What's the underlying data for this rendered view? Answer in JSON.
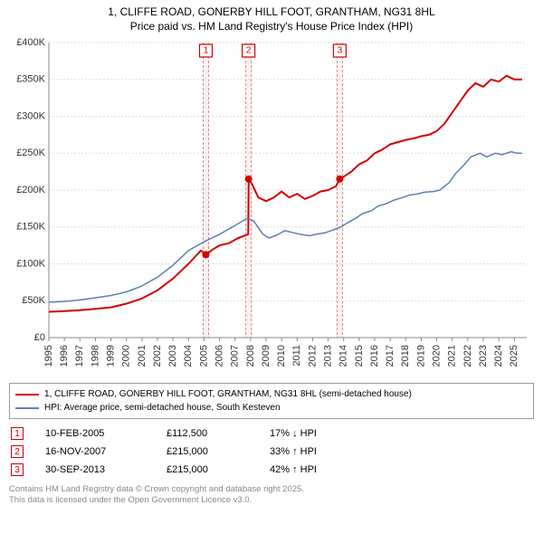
{
  "title": {
    "line1": "1, CLIFFE ROAD, GONERBY HILL FOOT, GRANTHAM, NG31 8HL",
    "line2": "Price paid vs. HM Land Registry's House Price Index (HPI)"
  },
  "chart": {
    "type": "line",
    "background_color": "#ffffff",
    "grid_color": "#dddddd",
    "axis_color": "#888888",
    "xlim": [
      1995,
      2025.8
    ],
    "ylim": [
      0,
      400000
    ],
    "ytick_step": 50000,
    "yticks_labels": [
      "£0",
      "£50K",
      "£100K",
      "£150K",
      "£200K",
      "£250K",
      "£300K",
      "£350K",
      "£400K"
    ],
    "xticks": [
      1995,
      1996,
      1997,
      1998,
      1999,
      2000,
      2001,
      2002,
      2003,
      2004,
      2005,
      2006,
      2007,
      2008,
      2009,
      2010,
      2011,
      2012,
      2013,
      2014,
      2015,
      2016,
      2017,
      2018,
      2019,
      2020,
      2021,
      2022,
      2023,
      2024,
      2025
    ],
    "label_fontsize": 11,
    "event_bands": [
      {
        "x": 2005.12,
        "marker": "1"
      },
      {
        "x": 2007.87,
        "marker": "2"
      },
      {
        "x": 2013.75,
        "marker": "3"
      }
    ],
    "band_fill": "#f0e6e6",
    "band_border": "#dd8888",
    "marker_box_stroke": "#cc0000",
    "series": [
      {
        "name": "price_paid",
        "label": "1, CLIFFE ROAD, GONERBY HILL FOOT, GRANTHAM, NG31 8HL (semi-detached house)",
        "color": "#d40000",
        "width": 2,
        "sale_point_radius": 4,
        "data": [
          [
            1995,
            35000
          ],
          [
            1996,
            36000
          ],
          [
            1997,
            37000
          ],
          [
            1998,
            39000
          ],
          [
            1999,
            41000
          ],
          [
            2000,
            46000
          ],
          [
            2001,
            53000
          ],
          [
            2002,
            64000
          ],
          [
            2003,
            80000
          ],
          [
            2004,
            100000
          ],
          [
            2004.8,
            118000
          ],
          [
            2005.12,
            112500
          ],
          [
            2005.6,
            120000
          ],
          [
            2006,
            125000
          ],
          [
            2006.6,
            128000
          ],
          [
            2007.2,
            135000
          ],
          [
            2007.85,
            140000
          ],
          [
            2007.88,
            215000
          ],
          [
            2008.1,
            208000
          ],
          [
            2008.5,
            190000
          ],
          [
            2009,
            185000
          ],
          [
            2009.5,
            190000
          ],
          [
            2010,
            198000
          ],
          [
            2010.5,
            190000
          ],
          [
            2011,
            195000
          ],
          [
            2011.5,
            188000
          ],
          [
            2012,
            192000
          ],
          [
            2012.5,
            198000
          ],
          [
            2013,
            200000
          ],
          [
            2013.5,
            205000
          ],
          [
            2013.75,
            215000
          ],
          [
            2014,
            218000
          ],
          [
            2014.5,
            225000
          ],
          [
            2015,
            235000
          ],
          [
            2015.5,
            240000
          ],
          [
            2016,
            250000
          ],
          [
            2016.5,
            255000
          ],
          [
            2017,
            262000
          ],
          [
            2017.5,
            265000
          ],
          [
            2018,
            268000
          ],
          [
            2018.5,
            270000
          ],
          [
            2019,
            273000
          ],
          [
            2019.5,
            275000
          ],
          [
            2020,
            280000
          ],
          [
            2020.5,
            290000
          ],
          [
            2021,
            305000
          ],
          [
            2021.5,
            320000
          ],
          [
            2022,
            335000
          ],
          [
            2022.5,
            345000
          ],
          [
            2023,
            340000
          ],
          [
            2023.5,
            350000
          ],
          [
            2024,
            347000
          ],
          [
            2024.5,
            355000
          ],
          [
            2025,
            350000
          ],
          [
            2025.5,
            350000
          ]
        ],
        "sale_points": [
          [
            2005.12,
            112500
          ],
          [
            2007.87,
            215000
          ],
          [
            2013.75,
            215000
          ]
        ]
      },
      {
        "name": "hpi",
        "label": "HPI: Average price, semi-detached house, South Kesteven",
        "color": "#5b7fbb",
        "width": 1.5,
        "data": [
          [
            1995,
            48000
          ],
          [
            1996,
            49000
          ],
          [
            1997,
            51000
          ],
          [
            1998,
            54000
          ],
          [
            1999,
            57000
          ],
          [
            2000,
            62000
          ],
          [
            2001,
            70000
          ],
          [
            2002,
            82000
          ],
          [
            2003,
            98000
          ],
          [
            2004,
            118000
          ],
          [
            2005,
            130000
          ],
          [
            2006,
            140000
          ],
          [
            2007,
            152000
          ],
          [
            2007.8,
            162000
          ],
          [
            2008.2,
            158000
          ],
          [
            2008.8,
            140000
          ],
          [
            2009.2,
            135000
          ],
          [
            2009.8,
            140000
          ],
          [
            2010.2,
            145000
          ],
          [
            2010.8,
            142000
          ],
          [
            2011.2,
            140000
          ],
          [
            2011.8,
            138000
          ],
          [
            2012.2,
            140000
          ],
          [
            2012.8,
            142000
          ],
          [
            2013.2,
            145000
          ],
          [
            2013.8,
            150000
          ],
          [
            2014.2,
            155000
          ],
          [
            2014.8,
            162000
          ],
          [
            2015.2,
            168000
          ],
          [
            2015.8,
            172000
          ],
          [
            2016.2,
            178000
          ],
          [
            2016.8,
            182000
          ],
          [
            2017.2,
            186000
          ],
          [
            2017.8,
            190000
          ],
          [
            2018.2,
            193000
          ],
          [
            2018.8,
            195000
          ],
          [
            2019.2,
            197000
          ],
          [
            2019.8,
            198000
          ],
          [
            2020.2,
            200000
          ],
          [
            2020.8,
            210000
          ],
          [
            2021.2,
            222000
          ],
          [
            2021.8,
            235000
          ],
          [
            2022.2,
            245000
          ],
          [
            2022.8,
            250000
          ],
          [
            2023.2,
            245000
          ],
          [
            2023.8,
            250000
          ],
          [
            2024.2,
            248000
          ],
          [
            2024.8,
            252000
          ],
          [
            2025.2,
            250000
          ],
          [
            2025.5,
            250000
          ]
        ]
      }
    ]
  },
  "legend": {
    "series1_label": "1, CLIFFE ROAD, GONERBY HILL FOOT, GRANTHAM, NG31 8HL (semi-detached house)",
    "series1_color": "#d40000",
    "series2_label": "HPI: Average price, semi-detached house, South Kesteven",
    "series2_color": "#5b7fbb"
  },
  "sales": [
    {
      "marker": "1",
      "date": "10-FEB-2005",
      "price": "£112,500",
      "diff": "17% ↓ HPI"
    },
    {
      "marker": "2",
      "date": "16-NOV-2007",
      "price": "£215,000",
      "diff": "33% ↑ HPI"
    },
    {
      "marker": "3",
      "date": "30-SEP-2013",
      "price": "£215,000",
      "diff": "42% ↑ HPI"
    }
  ],
  "footer": {
    "line1": "Contains HM Land Registry data © Crown copyright and database right 2025.",
    "line2": "This data is licensed under the Open Government Licence v3.0."
  }
}
